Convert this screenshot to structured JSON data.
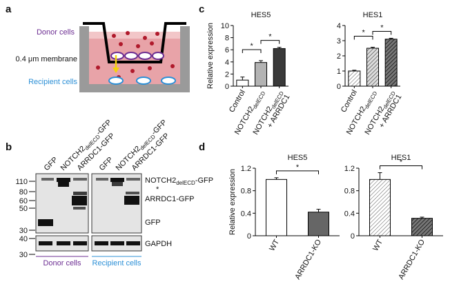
{
  "panel_labels": [
    "a",
    "b",
    "c",
    "d"
  ],
  "diagram": {
    "donor": "Donor cells",
    "membrane": "0.4 μm membrane",
    "recipient": "Recipient cells"
  },
  "blot": {
    "lanes": [
      "GFP",
      "NOTCH2delECD-GFP",
      "ARRDC1-GFP"
    ],
    "subscript": "delECD",
    "markers": [
      "110",
      "80",
      "60",
      "50",
      "30",
      "40",
      "30"
    ],
    "bands": [
      "NOTCH2delECD-GFP",
      "*",
      "ARRDC1-GFP",
      "GFP",
      "GAPDH"
    ],
    "groups": [
      "Donor cells",
      "Recipient cells"
    ]
  },
  "chart_data": [
    {
      "type": "bar",
      "title": "HES5",
      "ylabel": "Relative expression",
      "subscript": "delECD",
      "categories": [
        "Control",
        "NOTCH2delECD",
        "NOTCH2delECD + ARRDC1"
      ],
      "values": [
        1.0,
        3.9,
        6.2
      ],
      "errors": [
        0.5,
        0.3,
        0.2
      ],
      "colors": [
        "#ffffff",
        "#b3b3b3",
        "#3a3a3a"
      ],
      "hatch": false,
      "ylim": [
        0,
        10
      ],
      "yticks": [
        0,
        2,
        4,
        6,
        8,
        10
      ],
      "significance": [
        {
          "from": 0,
          "to": 1,
          "label": "*"
        },
        {
          "from": 1,
          "to": 2,
          "label": "*"
        }
      ]
    },
    {
      "type": "bar",
      "title": "HES1",
      "subscript": "delECD",
      "categories": [
        "Control",
        "NOTCH2delECD",
        "NOTCH2delECD + ARRDC1"
      ],
      "values": [
        1.0,
        2.5,
        3.1
      ],
      "errors": [
        0.05,
        0.07,
        0.06
      ],
      "colors": [
        "#ffffff",
        "#b3b3b3",
        "#3a3a3a"
      ],
      "hatch": true,
      "ylim": [
        0,
        4
      ],
      "yticks": [
        0,
        1,
        2,
        3,
        4
      ],
      "significance": [
        {
          "from": 0,
          "to": 1,
          "label": "*"
        },
        {
          "from": 1,
          "to": 2,
          "label": "*"
        }
      ]
    },
    {
      "type": "bar",
      "title": "HES5",
      "ylabel": "Relative expression",
      "categories": [
        "WT",
        "ARRDC1-KO"
      ],
      "values": [
        1.0,
        0.42
      ],
      "errors": [
        0.03,
        0.05
      ],
      "colors": [
        "#ffffff",
        "#666666"
      ],
      "hatch": false,
      "ylim": [
        0,
        1.2
      ],
      "yticks": [
        0,
        0.4,
        0.8,
        1.2
      ],
      "significance": [
        {
          "from": 0,
          "to": 1,
          "label": "*"
        }
      ]
    },
    {
      "type": "bar",
      "title": "HES1",
      "categories": [
        "WT",
        "ARRDC1-KO"
      ],
      "values": [
        1.0,
        0.31
      ],
      "errors": [
        0.12,
        0.02
      ],
      "colors": [
        "#ffffff",
        "#666666"
      ],
      "hatch": true,
      "ylim": [
        0,
        1.2
      ],
      "yticks": [
        0,
        0.4,
        0.8,
        1.2
      ],
      "significance": [
        {
          "from": 0,
          "to": 1,
          "label": "*"
        }
      ]
    }
  ]
}
